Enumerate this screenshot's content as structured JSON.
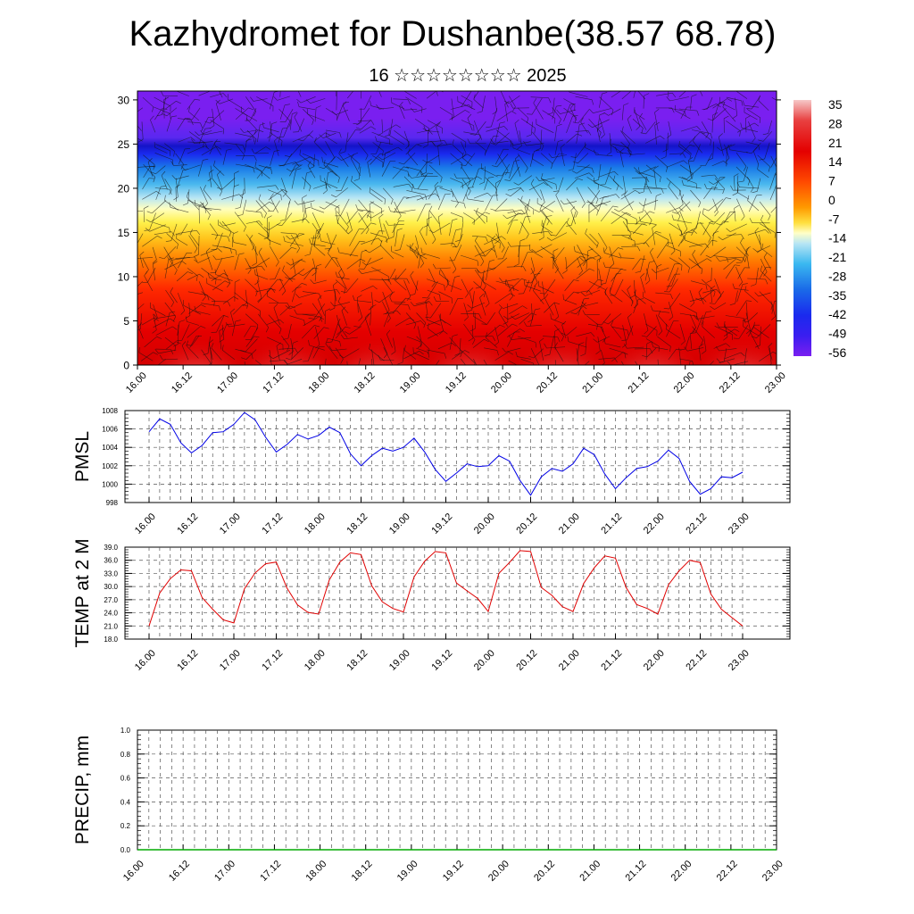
{
  "title": "Kazhydromet for Dushanbe(38.57 68.78)",
  "subtitle": "16 ☆☆☆☆☆☆☆☆ 2025",
  "chart_data": [
    {
      "name": "cross_section",
      "type": "heatmap",
      "x_ticks": [
        "16.00",
        "16.12",
        "17.00",
        "17.12",
        "18.00",
        "18.12",
        "19.00",
        "19.12",
        "20.00",
        "20.12",
        "21.00",
        "21.12",
        "22.00",
        "22.12",
        "23.00"
      ],
      "y_ticks": [
        0,
        5,
        10,
        15,
        20,
        25,
        30
      ],
      "ylim": [
        0,
        31
      ],
      "colorbar_labels": [
        "35",
        "28",
        "21",
        "14",
        "7",
        "0",
        "-7",
        "-14",
        "-21",
        "-28",
        "-35",
        "-42",
        "-49",
        "-56"
      ],
      "colors": {
        "cold": "#7a1ff0",
        "blue": "#1a2aee",
        "cyan": "#3ab8f0",
        "yellow": "#ffe93a",
        "orange": "#ff9400",
        "red": "#e00000",
        "pink": "#f4aaaa"
      }
    },
    {
      "name": "pmsl",
      "type": "line",
      "ylabel": "PMSL",
      "color": "#0000e6",
      "x_ticks": [
        "16.00",
        "16.12",
        "17.00",
        "17.12",
        "18.00",
        "18.12",
        "19.00",
        "19.12",
        "20.00",
        "20.12",
        "21.00",
        "21.12",
        "22.00",
        "22.12",
        "23.00"
      ],
      "y_ticks": [
        "998",
        "1000",
        "1002",
        "1004",
        "1006",
        "1008"
      ],
      "ylim": [
        998,
        1008
      ],
      "values": [
        1005.7,
        1007.1,
        1006.5,
        1004.5,
        1003.4,
        1004.2,
        1005.6,
        1005.7,
        1006.5,
        1007.8,
        1007.0,
        1005.1,
        1003.5,
        1004.3,
        1005.4,
        1004.9,
        1005.3,
        1006.2,
        1005.6,
        1003.3,
        1002.0,
        1003.1,
        1003.9,
        1003.6,
        1004.0,
        1005.0,
        1003.5,
        1001.6,
        1000.3,
        1001.2,
        1002.2,
        1001.9,
        1002.0,
        1003.1,
        1002.5,
        1000.4,
        998.8,
        1000.8,
        1001.7,
        1001.4,
        1002.2,
        1003.9,
        1003.2,
        1001.1,
        999.5,
        1000.7,
        1001.7,
        1001.9,
        1002.5,
        1003.7,
        1002.8,
        1000.3,
        998.9,
        999.5,
        1000.8,
        1000.7,
        1001.3
      ]
    },
    {
      "name": "temp2m",
      "type": "line",
      "ylabel": "TEMP at 2 M",
      "color": "#e00000",
      "x_ticks": [
        "16.00",
        "16.12",
        "17.00",
        "17.12",
        "18.00",
        "18.12",
        "19.00",
        "19.12",
        "20.00",
        "20.12",
        "21.00",
        "21.12",
        "22.00",
        "22.12",
        "23.00"
      ],
      "y_ticks": [
        "18.0",
        "21.0",
        "24.0",
        "27.0",
        "30.0",
        "33.0",
        "36.0",
        "39.0"
      ],
      "ylim": [
        18,
        39
      ],
      "values": [
        21.0,
        28.5,
        31.8,
        33.8,
        33.6,
        27.5,
        24.8,
        22.4,
        21.7,
        29.5,
        33.1,
        35.2,
        35.6,
        29.7,
        25.8,
        24.1,
        23.7,
        31.5,
        35.6,
        37.7,
        37.3,
        30.2,
        26.5,
        25.0,
        24.2,
        32.2,
        35.8,
        38.0,
        37.7,
        30.8,
        29.0,
        27.3,
        24.3,
        33.0,
        35.5,
        38.2,
        38.0,
        29.8,
        28.0,
        25.4,
        24.3,
        30.7,
        34.3,
        37.0,
        36.5,
        29.8,
        25.9,
        25.0,
        23.7,
        30.4,
        33.6,
        36.0,
        35.5,
        28.3,
        24.8,
        22.9,
        21.0
      ]
    },
    {
      "name": "precip",
      "type": "line",
      "ylabel": "PRECIP, mm",
      "color": "#00aa00",
      "x_ticks": [
        "16.00",
        "16.12",
        "17.00",
        "17.12",
        "18.00",
        "18.12",
        "19.00",
        "19.12",
        "20.00",
        "20.12",
        "21.00",
        "21.12",
        "22.00",
        "22.12",
        "23.00"
      ],
      "y_ticks": [
        "0.0",
        "0.2",
        "0.4",
        "0.6",
        "0.8",
        "1.0"
      ],
      "ylim": [
        0,
        1
      ],
      "values": [
        0,
        0,
        0,
        0,
        0,
        0,
        0,
        0,
        0,
        0,
        0,
        0,
        0,
        0,
        0,
        0,
        0,
        0,
        0,
        0,
        0,
        0,
        0,
        0,
        0,
        0,
        0,
        0,
        0,
        0,
        0,
        0,
        0,
        0,
        0,
        0,
        0,
        0,
        0,
        0,
        0,
        0,
        0,
        0,
        0,
        0,
        0,
        0,
        0,
        0,
        0,
        0,
        0,
        0,
        0,
        0,
        0
      ]
    }
  ]
}
